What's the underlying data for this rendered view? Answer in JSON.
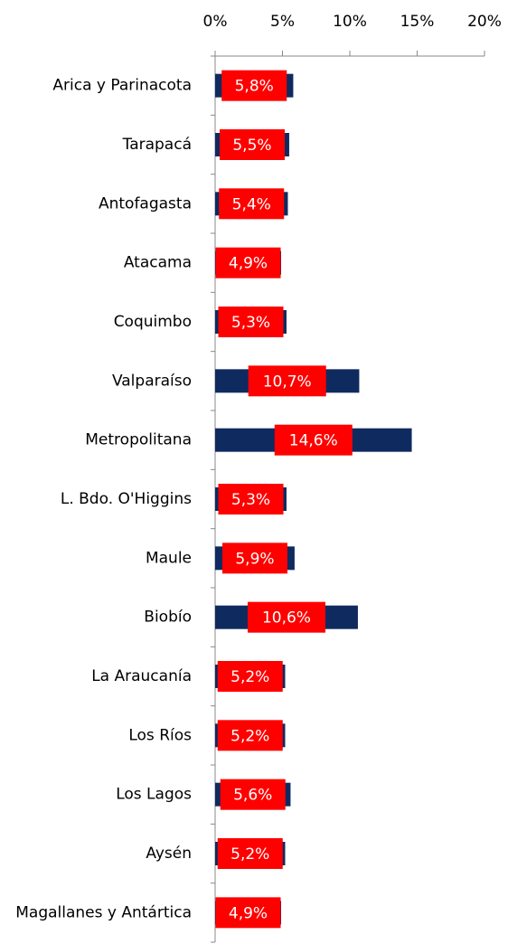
{
  "chart_data": {
    "type": "barh",
    "categories": [
      "Arica y Parinacota",
      "Tarapacá",
      "Antofagasta",
      "Atacama",
      "Coquimbo",
      "Valparaíso",
      "Metropolitana",
      "L. Bdo. O'Higgins",
      "Maule",
      "Biobío",
      "La Araucanía",
      "Los Ríos",
      "Los Lagos",
      "Aysén",
      "Magallanes y Antártica"
    ],
    "values": [
      5.8,
      5.5,
      5.4,
      4.9,
      5.3,
      10.7,
      14.6,
      5.3,
      5.9,
      10.6,
      5.2,
      5.2,
      5.6,
      5.2,
      4.9
    ],
    "value_labels": [
      "5,8%",
      "5,5%",
      "5,4%",
      "4,9%",
      "5,3%",
      "10,7%",
      "14,6%",
      "5,3%",
      "5,9%",
      "10,6%",
      "5,2%",
      "5,2%",
      "5,6%",
      "5,2%",
      "4,9%"
    ],
    "color": "#0f2a5f",
    "value_label_background": "#ff0000",
    "xlim": [
      0,
      20
    ],
    "xticks": [
      {
        "value": 0,
        "label": "0%"
      },
      {
        "value": 5,
        "label": "5%"
      },
      {
        "value": 10,
        "label": "10%"
      },
      {
        "value": 15,
        "label": "15%"
      },
      {
        "value": 20,
        "label": "20%"
      }
    ]
  }
}
